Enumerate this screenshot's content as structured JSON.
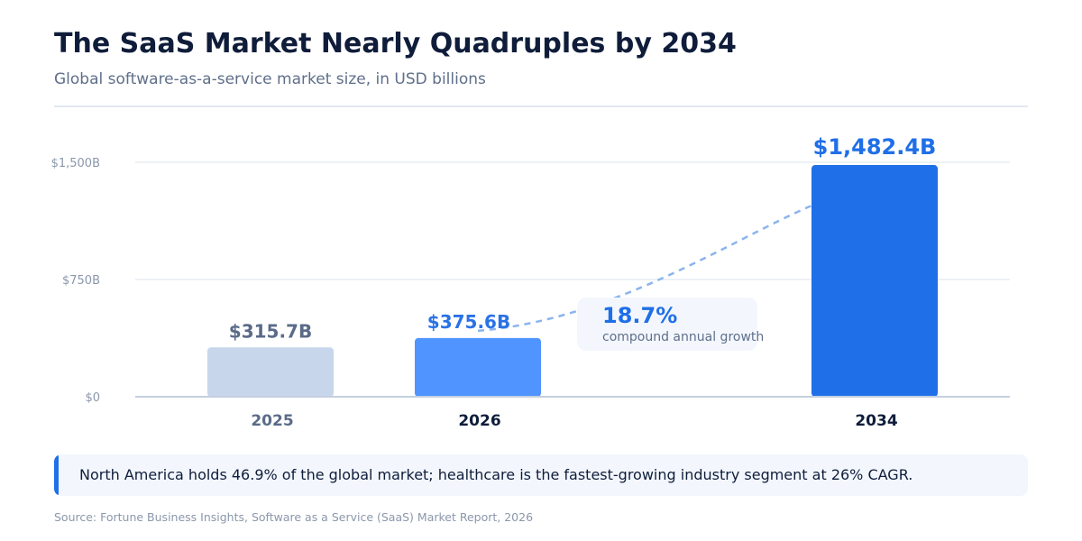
{
  "header": {
    "title": "The SaaS Market Nearly Quadruples by 2034",
    "subtitle": "Global software-as-a-service market size, in USD billions"
  },
  "chart_data": {
    "type": "bar",
    "title": "The SaaS Market Nearly Quadruples by 2034",
    "subtitle": "Global software-as-a-service market size, in USD billions",
    "categories": [
      "2025",
      "2026",
      "2034"
    ],
    "values": [
      315.7,
      375.6,
      1482.4
    ],
    "value_labels": [
      "$315.7B",
      "$375.6B",
      "$1,482.4B"
    ],
    "unit": "USD billions",
    "ylim": [
      0,
      1500
    ],
    "y_ticks": [
      0,
      750,
      1500
    ],
    "y_tick_labels": [
      "$0",
      "$750B",
      "$1,500B"
    ],
    "grid": true,
    "legend": "none",
    "bar_colors": [
      "#c8d6eb",
      "#4f94ff",
      "#1f6fe8"
    ],
    "value_label_colors": [
      "#5a6b88",
      "#2a72e6",
      "#1f6fe8"
    ],
    "category_label_colors": [
      "#5a6b88",
      "#0f1d3a",
      "#0f1d3a"
    ],
    "annotation": {
      "value": "18.7%",
      "label": "compound annual growth",
      "from": "2026",
      "to": "2034"
    }
  },
  "callout": {
    "text": "North America holds 46.9% of the global market; healthcare is the fastest-growing industry segment at 26% CAGR.",
    "accent": "#1f6fe8"
  },
  "footer": {
    "source": "Source: Fortune Business Insights, Software as a Service (SaaS) Market Report, 2026"
  }
}
